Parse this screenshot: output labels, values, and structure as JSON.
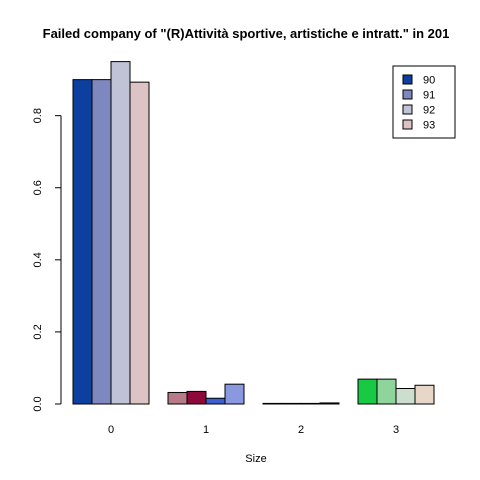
{
  "chart_data": {
    "type": "bar",
    "title": "Failed company of  \"(R)Attività sportive, artistiche e intratt.\" in 201",
    "xlabel": "Size",
    "ylabel": "",
    "categories": [
      "0",
      "1",
      "2",
      "3"
    ],
    "yticks": [
      "0.0",
      "0.2",
      "0.4",
      "0.6",
      "0.8"
    ],
    "ylim": [
      0,
      0.96
    ],
    "grid": false,
    "legend_position": "top-right",
    "series": [
      {
        "name": "90",
        "values": [
          0.9,
          0.032,
          0.0,
          0.069
        ]
      },
      {
        "name": "91",
        "values": [
          0.9,
          0.035,
          0.0,
          0.069
        ]
      },
      {
        "name": "92",
        "values": [
          0.95,
          0.016,
          0.0,
          0.043
        ]
      },
      {
        "name": "93",
        "values": [
          0.893,
          0.055,
          0.003,
          0.052
        ]
      }
    ],
    "legend_colors": [
      "#0D3FA0",
      "#7E88BF",
      "#C0C3D6",
      "#DCC4C4"
    ],
    "bar_colors": [
      [
        "#0D3FA0",
        "#7E88BF",
        "#C0C3D6",
        "#DCC4C4"
      ],
      [
        "#B87A86",
        "#8C0A3A",
        "#3D5ED1",
        "#8A98E0"
      ],
      [
        "#6C6C6C",
        "#8A8A8A",
        "#A8A8A8",
        "#3E3E3E"
      ],
      [
        "#19C843",
        "#8ED49B",
        "#CCDFCE",
        "#E8D6C8"
      ]
    ]
  }
}
